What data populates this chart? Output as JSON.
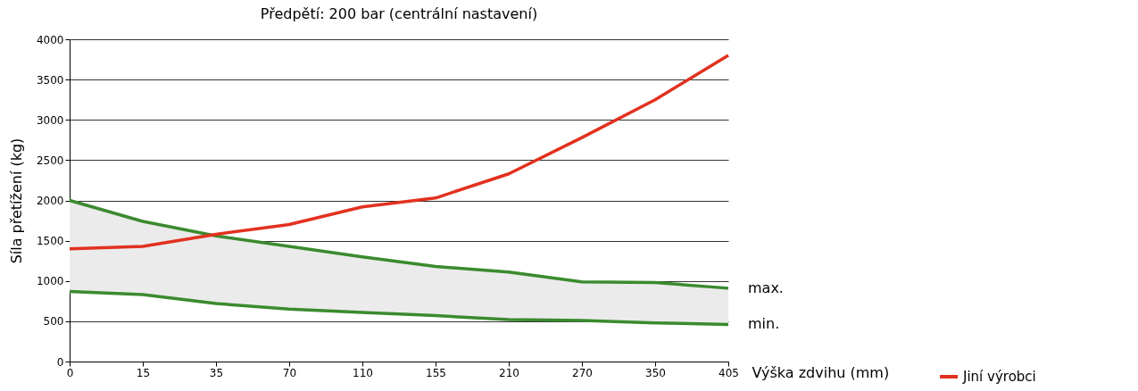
{
  "chart_data": {
    "type": "line",
    "title": "Předpětí: 200 bar (centrální nastavení)",
    "xlabel": "Výška zdvihu (mm)",
    "ylabel": "Síla přetížení (kg)",
    "categories": [
      "0",
      "15",
      "35",
      "70",
      "110",
      "155",
      "210",
      "270",
      "350",
      "405"
    ],
    "series": [
      {
        "name": "max.",
        "color": "#3b8a2f",
        "values": [
          2000,
          1740,
          1560,
          1430,
          1300,
          1180,
          1110,
          990,
          980,
          910
        ],
        "lower": [
          870,
          830,
          720,
          650,
          610,
          570,
          520,
          510,
          480,
          460
        ],
        "upper": [
          2000,
          1740,
          1560,
          1430,
          1300,
          1180,
          1110,
          990,
          980,
          910
        ]
      },
      {
        "name": "min.",
        "color": "#3b8a2f",
        "values": [
          870,
          830,
          720,
          650,
          610,
          570,
          520,
          510,
          480,
          460
        ]
      },
      {
        "name": "Jiní výrobci",
        "color": "#e2311f",
        "values": [
          1400,
          1430,
          1580,
          1700,
          1920,
          2030,
          2330,
          2780,
          3250,
          3800
        ]
      }
    ],
    "ylim": [
      0,
      4000
    ],
    "yticks": [
      0,
      500,
      1000,
      1500,
      2000,
      2500,
      3000,
      3500,
      4000
    ],
    "grid": "y",
    "legend": "bottom right",
    "line_style": "solid",
    "marker": "none"
  }
}
